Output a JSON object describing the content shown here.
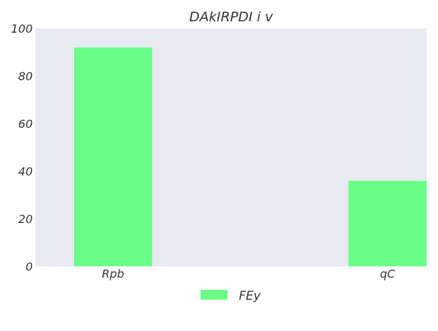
{
  "chart_data": {
    "type": "bar",
    "title": "DAkIRPDI i v",
    "xlabel": "",
    "ylabel": "",
    "categories": [
      "Rpb",
      "qC"
    ],
    "series": [
      {
        "name": "FEy",
        "values": [
          92,
          36
        ],
        "color": "#6bff8a"
      }
    ],
    "ylim": [
      0,
      100
    ],
    "yticks": [
      "0",
      "20",
      "40",
      "60",
      "80",
      "100"
    ],
    "grid": false,
    "legend_position": "bottom-center",
    "plot_background": "#e9e9f2"
  }
}
